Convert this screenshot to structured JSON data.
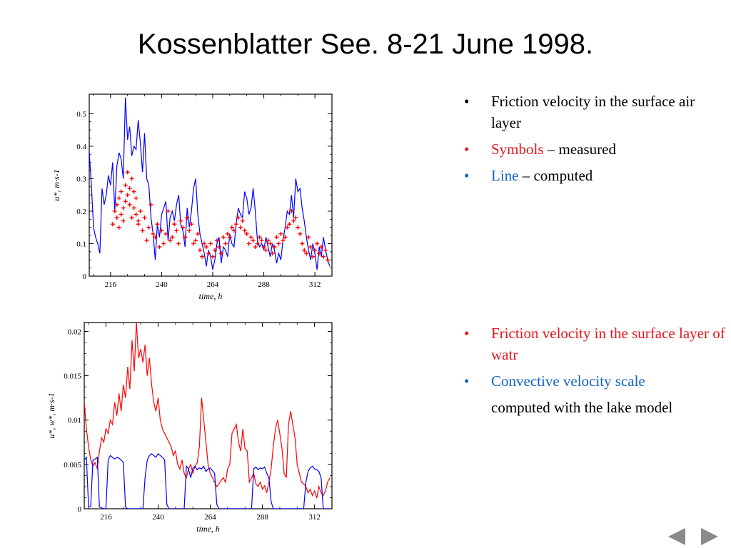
{
  "slide": {
    "title": "Kossenblatter See. 8-21 June 1998.",
    "bullets_top": [
      {
        "text": "Friction velocity in the surface air layer"
      },
      {
        "text": "Symbols",
        "rest": " – measured"
      },
      {
        "text": "Line",
        "rest": " – computed"
      }
    ],
    "bullets_bottom": [
      {
        "text": "Friction velocity in the surface layer of watr"
      },
      {
        "text": "Convective velocity scale"
      },
      {
        "text": "computed with the lake model"
      }
    ],
    "bullet_glyph": "•"
  },
  "colors": {
    "measured": "#ff0000",
    "computed": "#0000ff",
    "friction_water": "#ff0000",
    "convective": "#0000ff",
    "text_red": "#e8161b",
    "text_blue": "#1063c4"
  },
  "chart_data": [
    {
      "type": "line",
      "xlabel": "time, h",
      "ylabel": "u*, m·s-1",
      "xlim": [
        206,
        320
      ],
      "ylim": [
        0,
        0.56
      ],
      "xticks": [
        216,
        240,
        264,
        288,
        312
      ],
      "yticks": [
        0,
        0.1,
        0.2,
        0.3,
        0.4,
        0.5
      ],
      "series": [
        {
          "style": "line",
          "x": [
            206,
            207,
            208,
            209,
            210,
            211,
            212,
            213,
            214,
            215,
            216,
            217,
            218,
            219,
            220,
            221,
            222,
            223,
            224,
            225,
            226,
            227,
            228,
            229,
            230,
            231,
            232,
            233,
            234,
            235,
            236,
            237,
            238,
            239,
            240,
            241,
            242,
            243,
            244,
            245,
            246,
            247,
            248,
            249,
            250,
            251,
            252,
            253,
            254,
            255,
            256,
            257,
            258,
            259,
            260,
            261,
            262,
            263,
            264,
            265,
            266,
            267,
            268,
            269,
            270,
            271,
            272,
            273,
            274,
            275,
            276,
            277,
            278,
            279,
            280,
            281,
            282,
            283,
            284,
            285,
            286,
            287,
            288,
            289,
            290,
            291,
            292,
            293,
            294,
            295,
            296,
            297,
            298,
            299,
            300,
            301,
            302,
            303,
            304,
            305,
            306,
            307,
            308,
            309,
            310,
            311,
            312,
            313,
            314,
            315,
            316,
            317,
            318,
            319
          ],
          "y": [
            0.38,
            0.28,
            0.15,
            0.12,
            0.1,
            0.07,
            0.27,
            0.22,
            0.25,
            0.31,
            0.28,
            0.35,
            0.2,
            0.34,
            0.38,
            0.36,
            0.3,
            0.55,
            0.42,
            0.46,
            0.37,
            0.4,
            0.39,
            0.48,
            0.41,
            0.32,
            0.44,
            0.3,
            0.28,
            0.18,
            0.13,
            0.05,
            0.16,
            0.12,
            0.19,
            0.21,
            0.23,
            0.11,
            0.18,
            0.2,
            0.17,
            0.22,
            0.25,
            0.16,
            0.14,
            0.09,
            0.21,
            0.15,
            0.2,
            0.27,
            0.3,
            0.19,
            0.13,
            0.1,
            0.07,
            0.03,
            0.08,
            0.06,
            0.02,
            0.05,
            0.1,
            0.12,
            0.04,
            0.09,
            0.08,
            0.06,
            0.13,
            0.1,
            0.09,
            0.16,
            0.21,
            0.19,
            0.18,
            0.26,
            0.24,
            0.19,
            0.21,
            0.27,
            0.2,
            0.11,
            0.09,
            0.1,
            0.08,
            0.12,
            0.09,
            0.06,
            0.1,
            0.08,
            0.04,
            0.07,
            0.05,
            0.11,
            0.15,
            0.2,
            0.19,
            0.25,
            0.18,
            0.3,
            0.26,
            0.27,
            0.21,
            0.17,
            0.12,
            0.08,
            0.05,
            0.1,
            0.07,
            0.02,
            0.09,
            0.06,
            0.12,
            0.08,
            0.05,
            0.03
          ]
        },
        {
          "style": "markers",
          "x": [
            217,
            218,
            219,
            219,
            220,
            220,
            221,
            221,
            222,
            222,
            223,
            223,
            224,
            224,
            225,
            225,
            226,
            226,
            227,
            227,
            228,
            228,
            229,
            229,
            230,
            231,
            232,
            233,
            234,
            235,
            236,
            237,
            238,
            239,
            240,
            241,
            242,
            243,
            244,
            245,
            246,
            247,
            248,
            249,
            250,
            251,
            252,
            253,
            254,
            255,
            256,
            257,
            258,
            259,
            260,
            261,
            262,
            263,
            264,
            265,
            266,
            267,
            268,
            269,
            270,
            271,
            272,
            273,
            274,
            275,
            276,
            277,
            278,
            279,
            280,
            281,
            282,
            283,
            284,
            285,
            286,
            287,
            288,
            289,
            290,
            291,
            292,
            293,
            294,
            295,
            296,
            297,
            298,
            299,
            300,
            301,
            302,
            303,
            304,
            305,
            306,
            307,
            308,
            309,
            310,
            311,
            312,
            313,
            314,
            315,
            316,
            317,
            318
          ],
          "y": [
            0.16,
            0.2,
            0.18,
            0.22,
            0.15,
            0.24,
            0.19,
            0.26,
            0.17,
            0.21,
            0.23,
            0.28,
            0.25,
            0.32,
            0.27,
            0.22,
            0.3,
            0.18,
            0.26,
            0.21,
            0.19,
            0.24,
            0.17,
            0.16,
            0.2,
            0.14,
            0.18,
            0.11,
            0.15,
            0.22,
            0.13,
            0.12,
            0.16,
            0.09,
            0.14,
            0.1,
            0.13,
            0.2,
            0.11,
            0.12,
            0.16,
            0.14,
            0.1,
            0.17,
            0.15,
            0.12,
            0.18,
            0.14,
            0.16,
            0.1,
            0.11,
            0.13,
            0.08,
            0.06,
            0.1,
            0.09,
            0.07,
            0.1,
            0.06,
            0.08,
            0.11,
            0.09,
            0.07,
            0.12,
            0.1,
            0.13,
            0.12,
            0.15,
            0.14,
            0.16,
            0.18,
            0.15,
            0.17,
            0.14,
            0.13,
            0.1,
            0.12,
            0.11,
            0.09,
            0.1,
            0.12,
            0.11,
            0.09,
            0.08,
            0.11,
            0.1,
            0.07,
            0.09,
            0.12,
            0.1,
            0.13,
            0.11,
            0.12,
            0.15,
            0.16,
            0.2,
            0.17,
            0.18,
            0.15,
            0.13,
            0.1,
            0.08,
            0.07,
            0.12,
            0.09,
            0.06,
            0.08,
            0.1,
            0.07,
            0.09,
            0.06,
            0.08,
            0.05
          ]
        }
      ]
    },
    {
      "type": "line",
      "xlabel": "time, h",
      "ylabel": "u*, w*, m·s-1",
      "xlim": [
        206,
        320
      ],
      "ylim": [
        0,
        0.021
      ],
      "xticks": [
        216,
        240,
        264,
        288,
        312
      ],
      "yticks": [
        0,
        0.005,
        0.01,
        0.015,
        0.02
      ],
      "ytick_labels": [
        "0",
        "0.005",
        "0.01",
        "0.015",
        "0.02"
      ],
      "series": [
        {
          "style": "line",
          "x": [
            206,
            207,
            208,
            209,
            210,
            211,
            212,
            213,
            214,
            215,
            216,
            217,
            218,
            219,
            220,
            221,
            222,
            223,
            224,
            225,
            226,
            227,
            228,
            229,
            230,
            231,
            232,
            233,
            234,
            235,
            236,
            237,
            238,
            239,
            240,
            241,
            242,
            243,
            244,
            245,
            246,
            247,
            248,
            249,
            250,
            251,
            252,
            253,
            254,
            255,
            256,
            257,
            258,
            259,
            260,
            261,
            262,
            263,
            264,
            265,
            266,
            267,
            268,
            269,
            270,
            271,
            272,
            273,
            274,
            275,
            276,
            277,
            278,
            279,
            280,
            281,
            282,
            283,
            284,
            285,
            286,
            287,
            288,
            289,
            290,
            291,
            292,
            293,
            294,
            295,
            296,
            297,
            298,
            299,
            300,
            301,
            302,
            303,
            304,
            305,
            306,
            307,
            308,
            309,
            310,
            311,
            312,
            313,
            314,
            315,
            316,
            317,
            318,
            319
          ],
          "y": [
            0.012,
            0.009,
            0.007,
            0.0055,
            0.0048,
            0.0052,
            0.0045,
            0.0065,
            0.008,
            0.0075,
            0.009,
            0.0085,
            0.01,
            0.0095,
            0.012,
            0.0105,
            0.013,
            0.011,
            0.014,
            0.0125,
            0.016,
            0.0135,
            0.019,
            0.0155,
            0.021,
            0.017,
            0.018,
            0.0165,
            0.0185,
            0.015,
            0.017,
            0.014,
            0.012,
            0.011,
            0.0125,
            0.01,
            0.009,
            0.0085,
            0.008,
            0.0075,
            0.007,
            0.006,
            0.0065,
            0.005,
            0.0045,
            0.0055,
            0.004,
            0.0035,
            0.0045,
            0.005,
            0.004,
            0.0048,
            0.0052,
            0.007,
            0.0125,
            0.01,
            0.0075,
            0.005,
            0.004,
            0.0035,
            0.003,
            0.0025,
            0.0028,
            0.0032,
            0.0035,
            0.003,
            0.0045,
            0.005,
            0.0085,
            0.009,
            0.0095,
            0.0075,
            0.0065,
            0.009,
            0.0068,
            0.0065,
            0.003,
            0.0035,
            0.004,
            0.0028,
            0.0025,
            0.003,
            0.0022,
            0.0026,
            0.0018,
            0.003,
            0.0045,
            0.007,
            0.009,
            0.01,
            0.0085,
            0.0068,
            0.004,
            0.0035,
            0.0095,
            0.011,
            0.0095,
            0.008,
            0.005,
            0.004,
            0.003,
            0.0028,
            0.0025,
            0.0018,
            0.0022,
            0.0015,
            0.002,
            0.0012,
            0.0025,
            0.0018,
            0.0015,
            0.002,
            0.003,
            0.0035
          ]
        },
        {
          "style": "line",
          "x": [
            206,
            207,
            208,
            209,
            210,
            211,
            212,
            213,
            214,
            215,
            216,
            217,
            218,
            219,
            220,
            221,
            222,
            223,
            224,
            225,
            226,
            227,
            228,
            229,
            230,
            231,
            232,
            233,
            234,
            235,
            236,
            237,
            238,
            239,
            240,
            241,
            242,
            243,
            244,
            245,
            246,
            247,
            248,
            249,
            250,
            251,
            252,
            253,
            254,
            255,
            256,
            257,
            258,
            259,
            260,
            261,
            262,
            263,
            264,
            265,
            266,
            267,
            268,
            269,
            270,
            271,
            272,
            273,
            274,
            275,
            276,
            277,
            278,
            279,
            280,
            281,
            282,
            283,
            284,
            285,
            286,
            287,
            288,
            289,
            290,
            291,
            292,
            293,
            294,
            295,
            296,
            297,
            298,
            299,
            300,
            301,
            302,
            303,
            304,
            305,
            306,
            307,
            308,
            309,
            310,
            311,
            312,
            313,
            314,
            315,
            316,
            317,
            318,
            319
          ],
          "y": [
            0.0055,
            0.0058,
            0.0002,
            0.0003,
            0.0055,
            0.0056,
            0.0058,
            0.0002,
            0.0001,
            0.0,
            0.0,
            0.0055,
            0.006,
            0.0058,
            0.0056,
            0.0058,
            0.0057,
            0.0055,
            0.0052,
            0.0002,
            0.0,
            0.0,
            0.0,
            0.0,
            0.0,
            0.0,
            0.0,
            0.0,
            0.0035,
            0.0055,
            0.006,
            0.0062,
            0.006,
            0.0058,
            0.0062,
            0.006,
            0.0058,
            0.0055,
            0.0005,
            0.0,
            0.0,
            0.0,
            0.0,
            0.0,
            0.0,
            0.0,
            0.0,
            0.0048,
            0.0045,
            0.0035,
            0.0046,
            0.0048,
            0.0044,
            0.0046,
            0.0045,
            0.0048,
            0.0042,
            0.0045,
            0.0046,
            0.0043,
            0.004,
            0.0005,
            0.0,
            0.0,
            0.0,
            0.0,
            0.0,
            0.0,
            0.0,
            0.0,
            0.0,
            0.0,
            0.0,
            0.0,
            0.0,
            0.0,
            0.0,
            0.0,
            0.0045,
            0.0047,
            0.0044,
            0.0046,
            0.0045,
            0.0047,
            0.004,
            0.0035,
            0.0008,
            0.0,
            0.0,
            0.0,
            0.0,
            0.0,
            0.0,
            0.0,
            0.0,
            0.0,
            0.0,
            0.0,
            0.0,
            0.0,
            0.0,
            0.0,
            0.003,
            0.0042,
            0.0046,
            0.0048,
            0.0045,
            0.0044,
            0.0042,
            0.0035,
            0.0,
            0.0,
            0.0,
            0.0
          ]
        }
      ]
    }
  ]
}
